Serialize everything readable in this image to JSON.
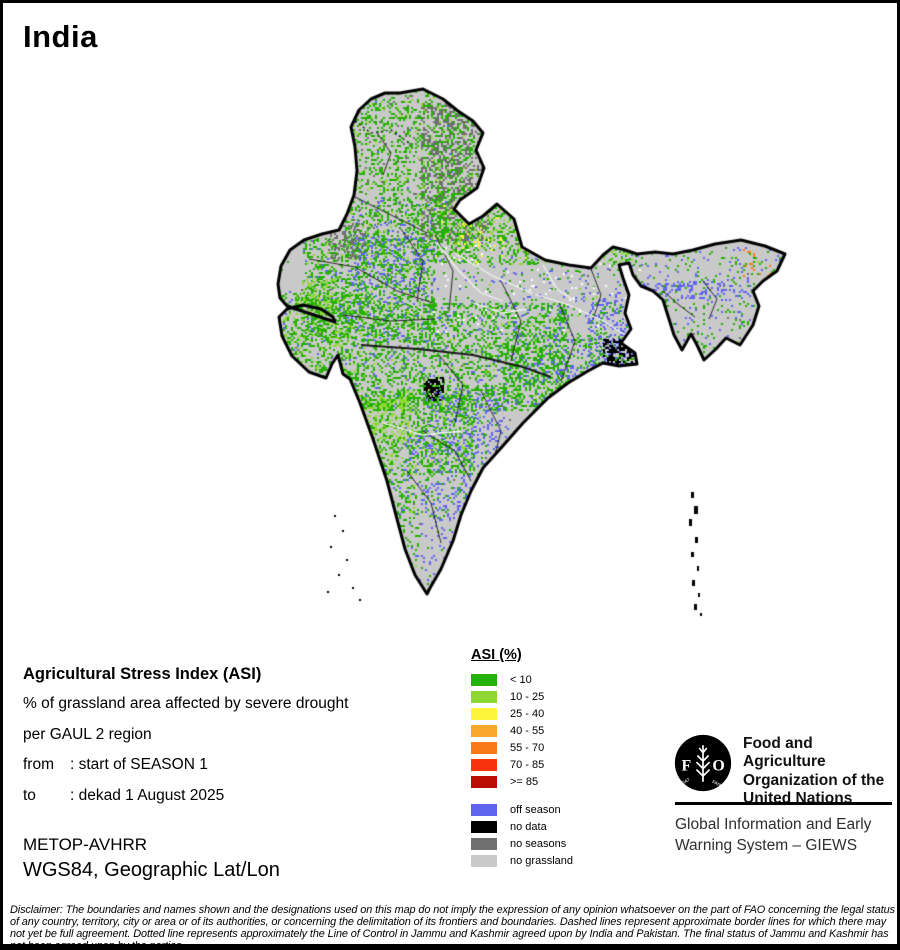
{
  "page": {
    "title": "India"
  },
  "legend": {
    "title": "ASI (%)",
    "asi_classes": [
      {
        "label": "< 10",
        "color": "#24b101"
      },
      {
        "label": "10 - 25",
        "color": "#8fd834"
      },
      {
        "label": "25 - 40",
        "color": "#fdf53a"
      },
      {
        "label": "40 - 55",
        "color": "#f8a82b"
      },
      {
        "label": "55 - 70",
        "color": "#f97918"
      },
      {
        "label": "70 - 85",
        "color": "#f8330e"
      },
      {
        "label": ">= 85",
        "color": "#bb0d01"
      }
    ],
    "other_classes": [
      {
        "label": "off season",
        "color": "#6065ef"
      },
      {
        "label": "no data",
        "color": "#000000"
      },
      {
        "label": "no seasons",
        "color": "#6f6f6f"
      },
      {
        "label": "no grassland",
        "color": "#c9c9c9"
      }
    ]
  },
  "description": {
    "heading": "Agricultural Stress Index (ASI)",
    "line1": "% of grassland area affected by severe drought",
    "line2": "per GAUL 2 region",
    "from_label": "from",
    "from_value": ": start of SEASON 1",
    "to_label": "to",
    "to_value": ": dekad 1 August 2025",
    "sensor": "METOP-AVHRR",
    "projection": "WGS84, Geographic Lat/Lon"
  },
  "branding": {
    "org_lines": [
      "Food and Agriculture",
      "Organization of the",
      "United Nations"
    ],
    "giews_lines": [
      "Global Information and Early",
      "Warning System – GIEWS"
    ],
    "logo": {
      "f": "F",
      "o": "O",
      "motto_left": "FIAT",
      "motto_right": "PANIS"
    }
  },
  "footer": {
    "disclaimer": "Disclaimer: The boundaries and names shown and the designations used on this map do not imply the expression of any opinion whatsoever on the part of FAO concerning the legal status of any country, territory, city or area or of its authorities, or concerning the delimitation of its frontiers and boundaries. Dashed lines represent approximate border lines for which there may not yet be full agreement. Dotted line represents approximately the Line of Control in Jammu and Kashmir agreed upon by India and Pakistan. The final status of Jammu and Kashmir has not been agreed upon by the parties."
  }
}
